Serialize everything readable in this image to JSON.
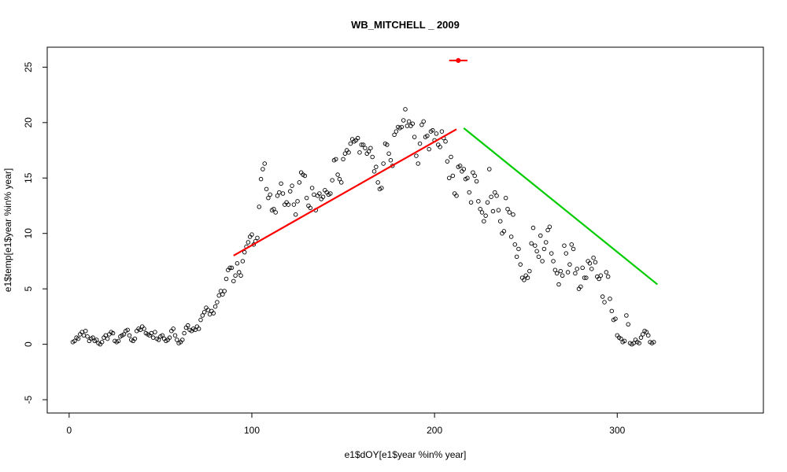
{
  "chart_data": {
    "type": "scatter",
    "title": "WB_MITCHELL _ 2009",
    "xlabel": "e1$dOY[e1$year %in% year]",
    "ylabel": "e1$temp[e1$year %in% year]",
    "xlim": [
      -12,
      380
    ],
    "ylim": [
      -6.2,
      26.8
    ],
    "x_ticks": [
      0,
      100,
      200,
      300
    ],
    "y_ticks": [
      -5,
      0,
      5,
      10,
      15,
      20,
      25
    ],
    "x_tick_labels": [
      "0",
      "100",
      "200",
      "300"
    ],
    "y_tick_labels": [
      "-5",
      "0",
      "5",
      "10",
      "15",
      "20",
      "25"
    ],
    "grid": false,
    "point_color": "#000000",
    "series": [
      {
        "values": [
          [
            2,
            0.2
          ],
          [
            3,
            0.3
          ],
          [
            4,
            0.6
          ],
          [
            5,
            0.5
          ],
          [
            6,
            0.9
          ],
          [
            7,
            1.1
          ],
          [
            8,
            0.8
          ],
          [
            9,
            1.2
          ],
          [
            10,
            0.7
          ],
          [
            11,
            0.3
          ],
          [
            12,
            0.5
          ],
          [
            13,
            0.6
          ],
          [
            14,
            0.3
          ],
          [
            15,
            0.4
          ],
          [
            16,
            0.1
          ],
          [
            17,
            0.0
          ],
          [
            18,
            0.2
          ],
          [
            19,
            0.6
          ],
          [
            20,
            0.8
          ],
          [
            21,
            0.5
          ],
          [
            22,
            0.9
          ],
          [
            23,
            1.1
          ],
          [
            24,
            1.0
          ],
          [
            25,
            0.3
          ],
          [
            26,
            0.2
          ],
          [
            27,
            0.3
          ],
          [
            28,
            0.7
          ],
          [
            29,
            0.8
          ],
          [
            30,
            0.9
          ],
          [
            31,
            1.2
          ],
          [
            32,
            1.3
          ],
          [
            33,
            0.8
          ],
          [
            34,
            0.4
          ],
          [
            35,
            0.3
          ],
          [
            36,
            0.5
          ],
          [
            37,
            1.2
          ],
          [
            38,
            1.4
          ],
          [
            39,
            1.3
          ],
          [
            40,
            1.6
          ],
          [
            41,
            1.4
          ],
          [
            42,
            1.0
          ],
          [
            43,
            0.9
          ],
          [
            44,
            0.8
          ],
          [
            45,
            1.0
          ],
          [
            46,
            0.6
          ],
          [
            47,
            1.1
          ],
          [
            48,
            0.5
          ],
          [
            49,
            0.4
          ],
          [
            50,
            0.7
          ],
          [
            51,
            0.8
          ],
          [
            52,
            0.5
          ],
          [
            53,
            0.3
          ],
          [
            54,
            0.4
          ],
          [
            55,
            0.6
          ],
          [
            56,
            1.2
          ],
          [
            57,
            1.4
          ],
          [
            58,
            0.8
          ],
          [
            59,
            0.4
          ],
          [
            60,
            0.1
          ],
          [
            61,
            0.2
          ],
          [
            62,
            0.4
          ],
          [
            63,
            1.0
          ],
          [
            64,
            1.5
          ],
          [
            65,
            1.7
          ],
          [
            66,
            1.3
          ],
          [
            67,
            1.2
          ],
          [
            68,
            1.4
          ],
          [
            69,
            1.3
          ],
          [
            70,
            1.6
          ],
          [
            71,
            1.4
          ],
          [
            72,
            2.2
          ],
          [
            73,
            2.6
          ],
          [
            74,
            2.9
          ],
          [
            75,
            3.3
          ],
          [
            76,
            3.1
          ],
          [
            77,
            2.7
          ],
          [
            78,
            3.0
          ],
          [
            79,
            2.8
          ],
          [
            80,
            3.4
          ],
          [
            81,
            3.8
          ],
          [
            82,
            4.4
          ],
          [
            83,
            4.8
          ],
          [
            84,
            4.5
          ],
          [
            85,
            4.8
          ],
          [
            86,
            5.9
          ],
          [
            87,
            6.7
          ],
          [
            88,
            6.9
          ],
          [
            89,
            6.9
          ],
          [
            90,
            5.7
          ],
          [
            91,
            6.2
          ],
          [
            92,
            7.3
          ],
          [
            93,
            6.5
          ],
          [
            94,
            6.2
          ],
          [
            95,
            7.5
          ],
          [
            96,
            8.3
          ],
          [
            97,
            8.8
          ],
          [
            98,
            9.2
          ],
          [
            99,
            9.7
          ],
          [
            100,
            9.9
          ],
          [
            101,
            9.0
          ],
          [
            102,
            9.3
          ],
          [
            103,
            9.6
          ],
          [
            104,
            12.4
          ],
          [
            105,
            14.9
          ],
          [
            106,
            15.8
          ],
          [
            107,
            16.3
          ],
          [
            108,
            14.0
          ],
          [
            109,
            13.2
          ],
          [
            110,
            13.5
          ],
          [
            111,
            12.1
          ],
          [
            112,
            12.2
          ],
          [
            113,
            11.9
          ],
          [
            114,
            13.4
          ],
          [
            115,
            13.7
          ],
          [
            116,
            14.5
          ],
          [
            117,
            13.6
          ],
          [
            118,
            12.6
          ],
          [
            119,
            12.8
          ],
          [
            120,
            12.6
          ],
          [
            121,
            13.8
          ],
          [
            122,
            14.3
          ],
          [
            123,
            12.6
          ],
          [
            124,
            11.7
          ],
          [
            125,
            12.9
          ],
          [
            126,
            14.6
          ],
          [
            127,
            15.5
          ],
          [
            128,
            15.3
          ],
          [
            129,
            15.2
          ],
          [
            130,
            13.2
          ],
          [
            131,
            12.5
          ],
          [
            132,
            12.3
          ],
          [
            133,
            14.1
          ],
          [
            134,
            13.5
          ],
          [
            135,
            12.1
          ],
          [
            136,
            13.4
          ],
          [
            137,
            13.6
          ],
          [
            138,
            13.1
          ],
          [
            139,
            13.3
          ],
          [
            140,
            13.9
          ],
          [
            141,
            13.7
          ],
          [
            142,
            13.5
          ],
          [
            143,
            13.6
          ],
          [
            144,
            14.8
          ],
          [
            145,
            16.6
          ],
          [
            146,
            16.7
          ],
          [
            147,
            15.3
          ],
          [
            148,
            14.9
          ],
          [
            149,
            14.6
          ],
          [
            150,
            16.7
          ],
          [
            151,
            17.2
          ],
          [
            152,
            17.5
          ],
          [
            153,
            17.3
          ],
          [
            154,
            18.1
          ],
          [
            155,
            18.5
          ],
          [
            156,
            18.3
          ],
          [
            157,
            18.4
          ],
          [
            158,
            18.6
          ],
          [
            159,
            17.3
          ],
          [
            160,
            18.0
          ],
          [
            161,
            18.0
          ],
          [
            162,
            17.7
          ],
          [
            163,
            17.2
          ],
          [
            164,
            17.4
          ],
          [
            165,
            17.7
          ],
          [
            166,
            16.9
          ],
          [
            167,
            15.6
          ],
          [
            168,
            16.0
          ],
          [
            169,
            14.6
          ],
          [
            170,
            14.0
          ],
          [
            171,
            14.1
          ],
          [
            172,
            16.3
          ],
          [
            173,
            18.1
          ],
          [
            174,
            18.0
          ],
          [
            175,
            17.2
          ],
          [
            176,
            16.6
          ],
          [
            177,
            16.1
          ],
          [
            178,
            18.9
          ],
          [
            179,
            19.2
          ],
          [
            180,
            19.6
          ],
          [
            181,
            19.5
          ],
          [
            182,
            19.6
          ],
          [
            183,
            20.2
          ],
          [
            184,
            21.2
          ],
          [
            185,
            19.7
          ],
          [
            186,
            20.1
          ],
          [
            187,
            19.7
          ],
          [
            188,
            19.9
          ],
          [
            189,
            18.7
          ],
          [
            190,
            17.0
          ],
          [
            191,
            16.3
          ],
          [
            192,
            18.1
          ],
          [
            193,
            19.8
          ],
          [
            194,
            20.1
          ],
          [
            195,
            18.7
          ],
          [
            196,
            18.8
          ],
          [
            197,
            17.6
          ],
          [
            198,
            19.2
          ],
          [
            199,
            19.3
          ],
          [
            200,
            18.4
          ],
          [
            201,
            19.0
          ],
          [
            202,
            18.0
          ],
          [
            203,
            17.8
          ],
          [
            204,
            19.2
          ],
          [
            205,
            18.6
          ],
          [
            206,
            18.3
          ],
          [
            207,
            16.5
          ],
          [
            208,
            15.0
          ],
          [
            209,
            16.9
          ],
          [
            210,
            15.2
          ],
          [
            211,
            13.6
          ],
          [
            212,
            13.4
          ],
          [
            213,
            16.0
          ],
          [
            214,
            16.1
          ],
          [
            215,
            15.6
          ],
          [
            216,
            15.8
          ],
          [
            217,
            14.9
          ],
          [
            218,
            15.0
          ],
          [
            219,
            13.7
          ],
          [
            220,
            12.8
          ],
          [
            221,
            15.5
          ],
          [
            222,
            15.2
          ],
          [
            223,
            14.7
          ],
          [
            224,
            12.9
          ],
          [
            225,
            12.2
          ],
          [
            226,
            11.9
          ],
          [
            227,
            11.1
          ],
          [
            228,
            11.6
          ],
          [
            229,
            12.8
          ],
          [
            230,
            15.8
          ],
          [
            231,
            13.3
          ],
          [
            232,
            12.0
          ],
          [
            233,
            13.7
          ],
          [
            234,
            13.4
          ],
          [
            235,
            12.1
          ],
          [
            236,
            11.1
          ],
          [
            237,
            10.0
          ],
          [
            238,
            10.2
          ],
          [
            239,
            13.2
          ],
          [
            240,
            12.2
          ],
          [
            241,
            11.9
          ],
          [
            242,
            9.7
          ],
          [
            243,
            11.7
          ],
          [
            244,
            9.0
          ],
          [
            245,
            7.9
          ],
          [
            246,
            8.6
          ],
          [
            247,
            7.2
          ],
          [
            248,
            6.0
          ],
          [
            249,
            5.8
          ],
          [
            250,
            6.2
          ],
          [
            251,
            6.0
          ],
          [
            252,
            6.6
          ],
          [
            253,
            9.1
          ],
          [
            254,
            10.5
          ],
          [
            255,
            8.9
          ],
          [
            256,
            8.4
          ],
          [
            257,
            7.9
          ],
          [
            258,
            9.8
          ],
          [
            259,
            7.5
          ],
          [
            260,
            8.6
          ],
          [
            261,
            9.2
          ],
          [
            262,
            10.3
          ],
          [
            263,
            10.6
          ],
          [
            264,
            8.2
          ],
          [
            265,
            7.5
          ],
          [
            266,
            6.7
          ],
          [
            267,
            6.4
          ],
          [
            268,
            5.4
          ],
          [
            269,
            6.6
          ],
          [
            270,
            6.2
          ],
          [
            271,
            8.9
          ],
          [
            272,
            8.2
          ],
          [
            273,
            6.5
          ],
          [
            274,
            7.2
          ],
          [
            275,
            9.0
          ],
          [
            276,
            8.6
          ],
          [
            277,
            6.4
          ],
          [
            278,
            6.8
          ],
          [
            279,
            5.0
          ],
          [
            280,
            5.2
          ],
          [
            281,
            6.9
          ],
          [
            282,
            6.0
          ],
          [
            283,
            6.0
          ],
          [
            284,
            7.5
          ],
          [
            285,
            7.3
          ],
          [
            286,
            6.8
          ],
          [
            287,
            7.8
          ],
          [
            288,
            7.4
          ],
          [
            289,
            6.1
          ],
          [
            290,
            5.9
          ],
          [
            291,
            6.2
          ],
          [
            292,
            4.3
          ],
          [
            293,
            3.8
          ],
          [
            294,
            6.5
          ],
          [
            295,
            6.1
          ],
          [
            296,
            4.1
          ],
          [
            297,
            3.0
          ],
          [
            298,
            2.2
          ],
          [
            299,
            2.3
          ],
          [
            300,
            0.8
          ],
          [
            301,
            0.6
          ],
          [
            302,
            0.5
          ],
          [
            303,
            0.2
          ],
          [
            304,
            0.3
          ],
          [
            305,
            2.6
          ],
          [
            306,
            1.8
          ],
          [
            307,
            0.1
          ],
          [
            308,
            0.0
          ],
          [
            309,
            0.1
          ],
          [
            310,
            0.4
          ],
          [
            311,
            0.2
          ],
          [
            312,
            0.1
          ],
          [
            313,
            0.6
          ],
          [
            314,
            0.9
          ],
          [
            315,
            1.2
          ],
          [
            316,
            1.1
          ],
          [
            317,
            0.8
          ],
          [
            318,
            0.2
          ],
          [
            319,
            0.1
          ],
          [
            320,
            0.2
          ]
        ]
      }
    ],
    "fit_lines": [
      {
        "color": "#ff0000",
        "x": [
          90,
          212
        ],
        "y": [
          8.0,
          19.4
        ]
      },
      {
        "color": "#00cc00",
        "x": [
          216,
          322
        ],
        "y": [
          19.5,
          5.4
        ]
      }
    ],
    "marker": {
      "color": "#ff0000",
      "x": 213,
      "y": 25.6,
      "x_err": [
        208,
        218
      ]
    }
  }
}
